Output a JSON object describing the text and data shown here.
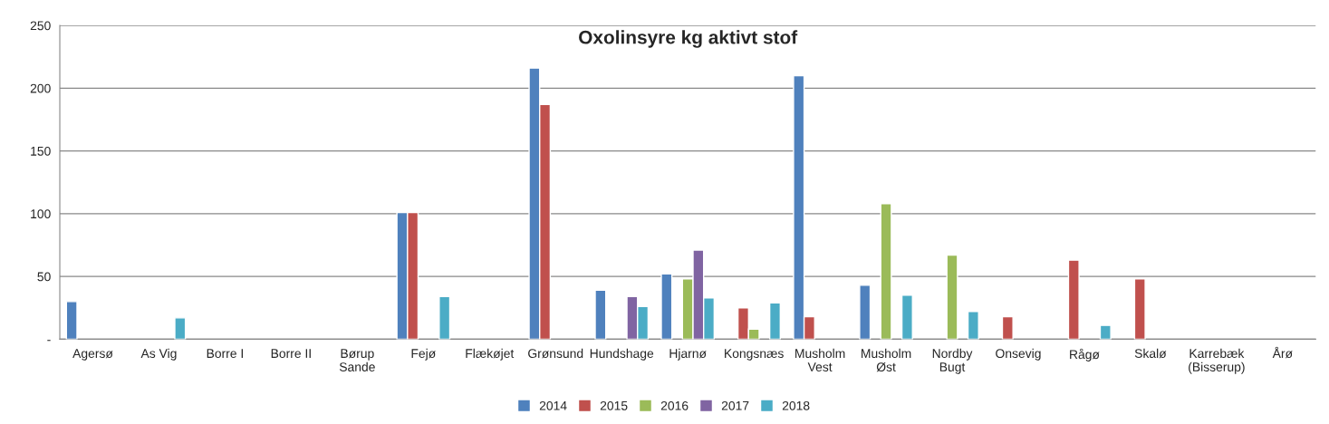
{
  "chart_data": {
    "type": "bar",
    "title": "Oxolinsyre kg aktivt stof",
    "categories": [
      "Agersø",
      "As Vig",
      "Borre I",
      "Borre II",
      "Børup\nSande",
      "Fejø",
      "Flækøjet",
      "Grønsund",
      "Hundshage",
      "Hjarnø",
      "Kongsnæs",
      "Musholm\nVest",
      "Musholm\nØst",
      "Nordby\nBugt",
      "Onsevig",
      "Rågø",
      "Skalø",
      "Karrebæk\n(Bisserup)",
      "Årø"
    ],
    "series": [
      {
        "name": "2014",
        "color": "#4f81bd",
        "values": [
          30,
          null,
          null,
          null,
          null,
          101,
          null,
          216,
          39,
          52,
          null,
          210,
          43,
          null,
          null,
          null,
          null,
          null,
          null
        ]
      },
      {
        "name": "2015",
        "color": "#c0504d",
        "values": [
          null,
          null,
          null,
          null,
          null,
          101,
          null,
          187,
          null,
          null,
          25,
          18,
          null,
          null,
          18,
          63,
          48,
          null,
          null
        ]
      },
      {
        "name": "2016",
        "color": "#9bbb59",
        "values": [
          null,
          null,
          null,
          null,
          null,
          null,
          null,
          null,
          null,
          48,
          8,
          null,
          108,
          67,
          null,
          null,
          null,
          null,
          null
        ]
      },
      {
        "name": "2017",
        "color": "#8064a2",
        "values": [
          null,
          null,
          null,
          null,
          null,
          null,
          null,
          null,
          34,
          71,
          null,
          null,
          null,
          null,
          null,
          null,
          null,
          null,
          null
        ]
      },
      {
        "name": "2018",
        "color": "#4bacc6",
        "values": [
          null,
          17,
          null,
          null,
          null,
          34,
          null,
          null,
          26,
          33,
          29,
          null,
          35,
          22,
          null,
          11,
          null,
          null,
          null
        ]
      }
    ],
    "ylim": [
      0,
      250
    ],
    "yticks": [
      {
        "value": 0,
        "label": "-"
      },
      50,
      100,
      150,
      200,
      250
    ],
    "grid": "y",
    "legend": "bottom"
  }
}
